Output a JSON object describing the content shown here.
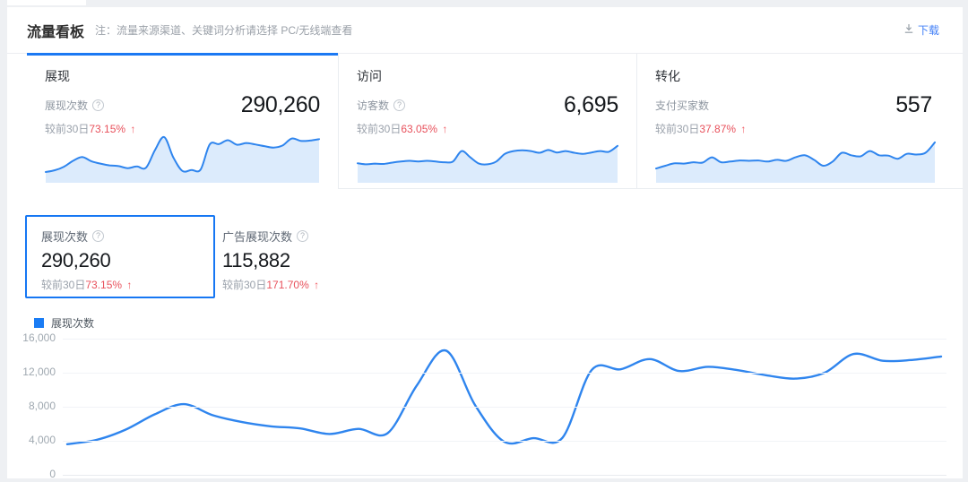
{
  "ui": {
    "arrow_up": "↑",
    "info_glyph": "?"
  },
  "colors": {
    "accent_blue": "#1c79f3",
    "line_blue": "#2f85ee",
    "spark_fill": "#dcebfc",
    "rise_red": "#e8515c",
    "panel_bg": "#ffffff",
    "page_bg": "#eef0f3"
  },
  "header": {
    "title": "流量看板",
    "note": "注：流量来源渠道、关键词分析请选择 PC/无线端查看",
    "download_label": "下载"
  },
  "cards": [
    {
      "title": "展现",
      "metric_label": "展现次数",
      "has_info": true,
      "value": "290,260",
      "compare_prefix": "较前30日",
      "change": "73.15%",
      "trend": "up",
      "sparkline": [
        0,
        0.05,
        0.15,
        0.32,
        0.43,
        0.31,
        0.24,
        0.19,
        0.17,
        0.11,
        0.16,
        0.12,
        0.63,
        1,
        0.42,
        0.03,
        0.06,
        0.07,
        0.79,
        0.8,
        0.91,
        0.78,
        0.83,
        0.79,
        0.74,
        0.7,
        0.76,
        0.96,
        0.89,
        0.9,
        0.94
      ]
    },
    {
      "title": "访问",
      "metric_label": "访客数",
      "has_info": true,
      "value": "6,695",
      "compare_prefix": "较前30日",
      "change": "63.05%",
      "trend": "up",
      "sparkline": [
        0.25,
        0.22,
        0.24,
        0.23,
        0.27,
        0.3,
        0.32,
        0.3,
        0.32,
        0.3,
        0.28,
        0.3,
        0.6,
        0.42,
        0.24,
        0.22,
        0.3,
        0.52,
        0.6,
        0.62,
        0.6,
        0.55,
        0.63,
        0.56,
        0.6,
        0.55,
        0.52,
        0.56,
        0.6,
        0.58,
        0.75
      ]
    },
    {
      "title": "转化",
      "metric_label": "支付买家数",
      "has_info": false,
      "value": "557",
      "compare_prefix": "较前30日",
      "change": "37.87%",
      "trend": "up",
      "sparkline": [
        0.1,
        0.18,
        0.25,
        0.24,
        0.28,
        0.27,
        0.42,
        0.28,
        0.3,
        0.33,
        0.32,
        0.33,
        0.3,
        0.35,
        0.32,
        0.42,
        0.48,
        0.35,
        0.18,
        0.3,
        0.55,
        0.48,
        0.45,
        0.6,
        0.48,
        0.47,
        0.38,
        0.52,
        0.5,
        0.55,
        0.85
      ]
    }
  ],
  "metric_boxes": [
    {
      "label": "展现次数",
      "has_info": true,
      "value": "290,260",
      "compare_prefix": "较前30日",
      "change": "73.15%",
      "trend": "up",
      "selected": true
    },
    {
      "label": "广告展现次数",
      "has_info": true,
      "value": "115,882",
      "compare_prefix": "较前30日",
      "change": "171.70%",
      "trend": "up",
      "selected": false
    }
  ],
  "chart_data": {
    "type": "line",
    "title": "展现次数",
    "series": [
      {
        "name": "展现次数",
        "values": [
          3600,
          4100,
          5300,
          7100,
          8300,
          7000,
          6200,
          5700,
          5450,
          4800,
          5400,
          4900,
          10500,
          14600,
          8200,
          3900,
          4300,
          4350,
          12300,
          12400,
          13600,
          12200,
          12700,
          12300,
          11700,
          11300,
          12000,
          14200,
          13400,
          13500,
          13900
        ]
      }
    ],
    "xlabel": "",
    "ylabel": "",
    "x_tick_labels": [],
    "ylim": [
      0,
      16000
    ],
    "yticks": [
      0,
      4000,
      8000,
      12000,
      16000
    ],
    "ytick_labels": [
      "0",
      "4,000",
      "8,000",
      "12,000",
      "16,000"
    ],
    "grid": true,
    "legend": [
      "展现次数"
    ],
    "legend_position": "top-left",
    "smooth": true,
    "line_color": "#2f85ee"
  }
}
